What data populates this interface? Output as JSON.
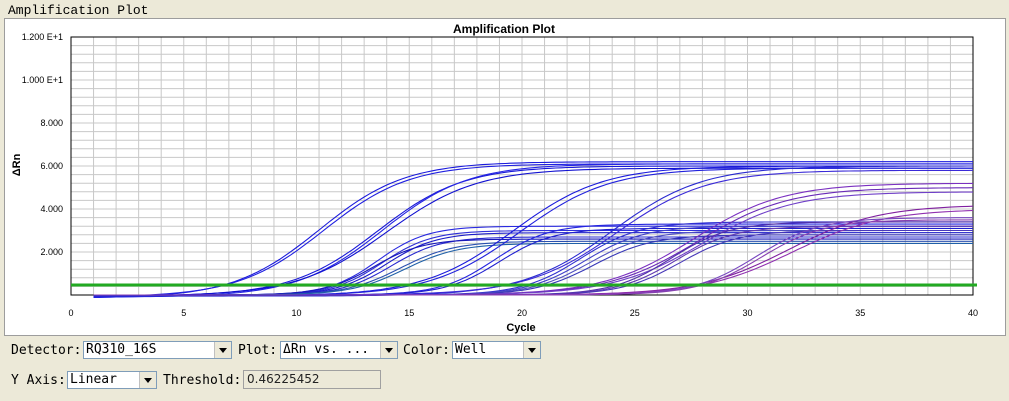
{
  "panel_title": "Amplification Plot",
  "controls": {
    "detector_label": "Detector:",
    "detector_value": "RQ310_16S",
    "plot_label": "Plot:",
    "plot_value": "ΔRn vs. ...",
    "color_label": "Color:",
    "color_value": "Well",
    "yaxis_label": "Y Axis:",
    "yaxis_value": "Linear",
    "threshold_label": "Threshold:",
    "threshold_value": "0.46225452",
    "combo_arrow_icon": "chevron-down-icon"
  },
  "chart_data": {
    "type": "line",
    "title": "Amplification Plot",
    "xlabel": "Cycle",
    "ylabel": "ΔRn",
    "xlim": [
      0,
      40
    ],
    "ylim": [
      0,
      12
    ],
    "x_ticks": [
      0,
      5,
      10,
      15,
      20,
      25,
      30,
      35,
      40
    ],
    "x_tick_labels": [
      "0",
      "5",
      "10",
      "15",
      "20",
      "25",
      "30",
      "35",
      "40"
    ],
    "y_ticks": [
      2,
      4,
      6,
      8,
      10,
      12
    ],
    "y_tick_labels": [
      "2.000",
      "4.000",
      "6.000",
      "8.000",
      "1.000 E+1",
      "1.200 E+1"
    ],
    "grid": true,
    "threshold": 0.46225452,
    "threshold_color": "#22aa22",
    "series_model": "sigmoid: baseline + (plateau - baseline) / (1 + exp(-(cycle - midpoint) / slope))",
    "series": [
      {
        "color": "#1a1adc",
        "plateau": 6.2,
        "midpoint": 11.0,
        "slope": 1.9,
        "baseline": -0.15
      },
      {
        "color": "#2020e0",
        "plateau": 6.1,
        "midpoint": 11.2,
        "slope": 1.9,
        "baseline": -0.1
      },
      {
        "color": "#1818d8",
        "plateau": 6.0,
        "midpoint": 13.6,
        "slope": 1.9,
        "baseline": -0.05
      },
      {
        "color": "#2424e4",
        "plateau": 6.1,
        "midpoint": 13.8,
        "slope": 1.9,
        "baseline": -0.1
      },
      {
        "color": "#1010d0",
        "plateau": 5.9,
        "midpoint": 14.0,
        "slope": 2.0,
        "baseline": -0.05
      },
      {
        "color": "#2a2ae0",
        "plateau": 3.2,
        "midpoint": 13.6,
        "slope": 1.1,
        "baseline": 0.0
      },
      {
        "color": "#3030d8",
        "plateau": 3.0,
        "midpoint": 13.8,
        "slope": 1.1,
        "baseline": 0.0
      },
      {
        "color": "#1c1cc8",
        "plateau": 2.9,
        "midpoint": 14.0,
        "slope": 1.1,
        "baseline": 0.0
      },
      {
        "color": "#2828d0",
        "plateau": 2.7,
        "midpoint": 14.2,
        "slope": 1.1,
        "baseline": 0.0
      },
      {
        "color": "#1818b8",
        "plateau": 2.6,
        "midpoint": 13.4,
        "slope": 1.1,
        "baseline": 0.0
      },
      {
        "color": "#2a50b0",
        "plateau": 2.5,
        "midpoint": 14.6,
        "slope": 1.2,
        "baseline": 0.0
      },
      {
        "color": "#2060a8",
        "plateau": 2.4,
        "midpoint": 14.8,
        "slope": 1.2,
        "baseline": 0.0
      },
      {
        "color": "#1a1adc",
        "plateau": 6.0,
        "midpoint": 19.6,
        "slope": 2.0,
        "baseline": -0.05
      },
      {
        "color": "#2222dc",
        "plateau": 5.9,
        "midpoint": 19.9,
        "slope": 2.0,
        "baseline": -0.05
      },
      {
        "color": "#2525e0",
        "plateau": 3.3,
        "midpoint": 18.8,
        "slope": 1.2,
        "baseline": 0.0
      },
      {
        "color": "#1e1ed0",
        "plateau": 3.1,
        "midpoint": 19.0,
        "slope": 1.2,
        "baseline": 0.0
      },
      {
        "color": "#2a2ad0",
        "plateau": 6.0,
        "midpoint": 24.0,
        "slope": 2.0,
        "baseline": -0.05
      },
      {
        "color": "#3a2ad8",
        "plateau": 5.8,
        "midpoint": 24.2,
        "slope": 2.0,
        "baseline": 0.0
      },
      {
        "color": "#3030d0",
        "plateau": 3.4,
        "midpoint": 22.6,
        "slope": 1.3,
        "baseline": 0.0
      },
      {
        "color": "#4040c8",
        "plateau": 3.2,
        "midpoint": 22.8,
        "slope": 1.3,
        "baseline": 0.0
      },
      {
        "color": "#5050c0",
        "plateau": 3.0,
        "midpoint": 23.0,
        "slope": 1.3,
        "baseline": 0.0
      },
      {
        "color": "#3838b8",
        "plateau": 2.8,
        "midpoint": 23.2,
        "slope": 1.3,
        "baseline": 0.0
      },
      {
        "color": "#7a30c0",
        "plateau": 5.2,
        "midpoint": 27.6,
        "slope": 2.0,
        "baseline": 0.0
      },
      {
        "color": "#6a2ab8",
        "plateau": 5.0,
        "midpoint": 27.8,
        "slope": 2.0,
        "baseline": 0.0
      },
      {
        "color": "#7040c8",
        "plateau": 4.8,
        "midpoint": 28.0,
        "slope": 2.0,
        "baseline": 0.0
      },
      {
        "color": "#5030a8",
        "plateau": 3.4,
        "midpoint": 26.6,
        "slope": 1.3,
        "baseline": 0.0
      },
      {
        "color": "#6038b0",
        "plateau": 3.2,
        "midpoint": 26.8,
        "slope": 1.3,
        "baseline": 0.0
      },
      {
        "color": "#4838b8",
        "plateau": 3.0,
        "midpoint": 27.0,
        "slope": 1.3,
        "baseline": 0.0
      },
      {
        "color": "#8020a0",
        "plateau": 4.2,
        "midpoint": 31.8,
        "slope": 2.0,
        "baseline": 0.0
      },
      {
        "color": "#9030b0",
        "plateau": 4.0,
        "midpoint": 32.0,
        "slope": 2.0,
        "baseline": 0.0
      },
      {
        "color": "#7848c0",
        "plateau": 3.6,
        "midpoint": 30.4,
        "slope": 1.4,
        "baseline": 0.0
      },
      {
        "color": "#8840b0",
        "plateau": 3.5,
        "midpoint": 30.6,
        "slope": 1.4,
        "baseline": 0.0
      }
    ]
  }
}
